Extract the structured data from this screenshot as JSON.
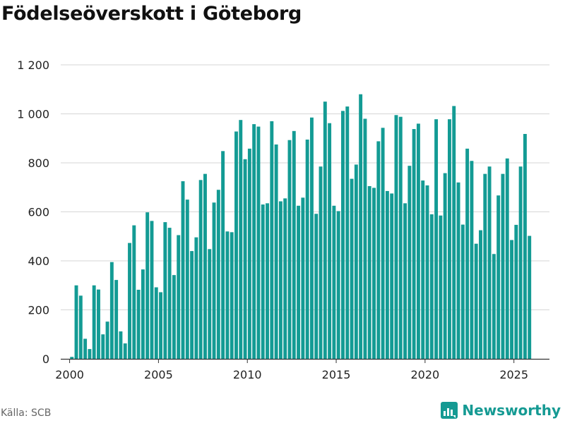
{
  "header": {
    "title": "Födelseöverskott i Göteborg"
  },
  "footer": {
    "source": "Källa: SCB",
    "brand": "Newsworthy"
  },
  "colors": {
    "bar": "#139b94",
    "grid": "#d6d6d6",
    "axis": "#333333",
    "text": "#222222",
    "brand": "#159a93"
  },
  "chart_data": {
    "type": "bar",
    "title": "Födelseöverskott i Göteborg",
    "xlabel": "",
    "ylabel": "",
    "ylim": [
      0,
      1200
    ],
    "xlim": [
      1999.5,
      2027
    ],
    "yticks": [
      0,
      200,
      400,
      600,
      800,
      1000,
      1200
    ],
    "ytick_labels": [
      "0",
      "200",
      "400",
      "600",
      "800",
      "1 000",
      "1 200"
    ],
    "xticks": [
      2000,
      2005,
      2010,
      2015,
      2020,
      2025
    ],
    "xtick_labels": [
      "2000",
      "2005",
      "2010",
      "2015",
      "2020",
      "2025"
    ],
    "grid": true,
    "frequency": "quarterly",
    "start": 2000.0,
    "step": 0.25,
    "series": [
      {
        "name": "Födelseöverskott",
        "values": [
          8,
          300,
          258,
          82,
          40,
          300,
          283,
          100,
          152,
          395,
          322,
          112,
          63,
          473,
          545,
          282,
          365,
          598,
          563,
          292,
          272,
          558,
          535,
          342,
          505,
          725,
          650,
          440,
          496,
          730,
          755,
          448,
          638,
          690,
          848,
          520,
          517,
          928,
          975,
          815,
          858,
          958,
          948,
          630,
          635,
          970,
          875,
          643,
          655,
          893,
          930,
          625,
          658,
          895,
          985,
          592,
          785,
          1050,
          962,
          625,
          603,
          1012,
          1030,
          735,
          793,
          1080,
          980,
          705,
          698,
          888,
          943,
          685,
          675,
          995,
          988,
          635,
          788,
          938,
          960,
          728,
          708,
          590,
          978,
          585,
          758,
          978,
          1032,
          720,
          548,
          858,
          808,
          470,
          525,
          755,
          785,
          428,
          667,
          755,
          818,
          485,
          547,
          785,
          918,
          502
        ]
      }
    ]
  }
}
